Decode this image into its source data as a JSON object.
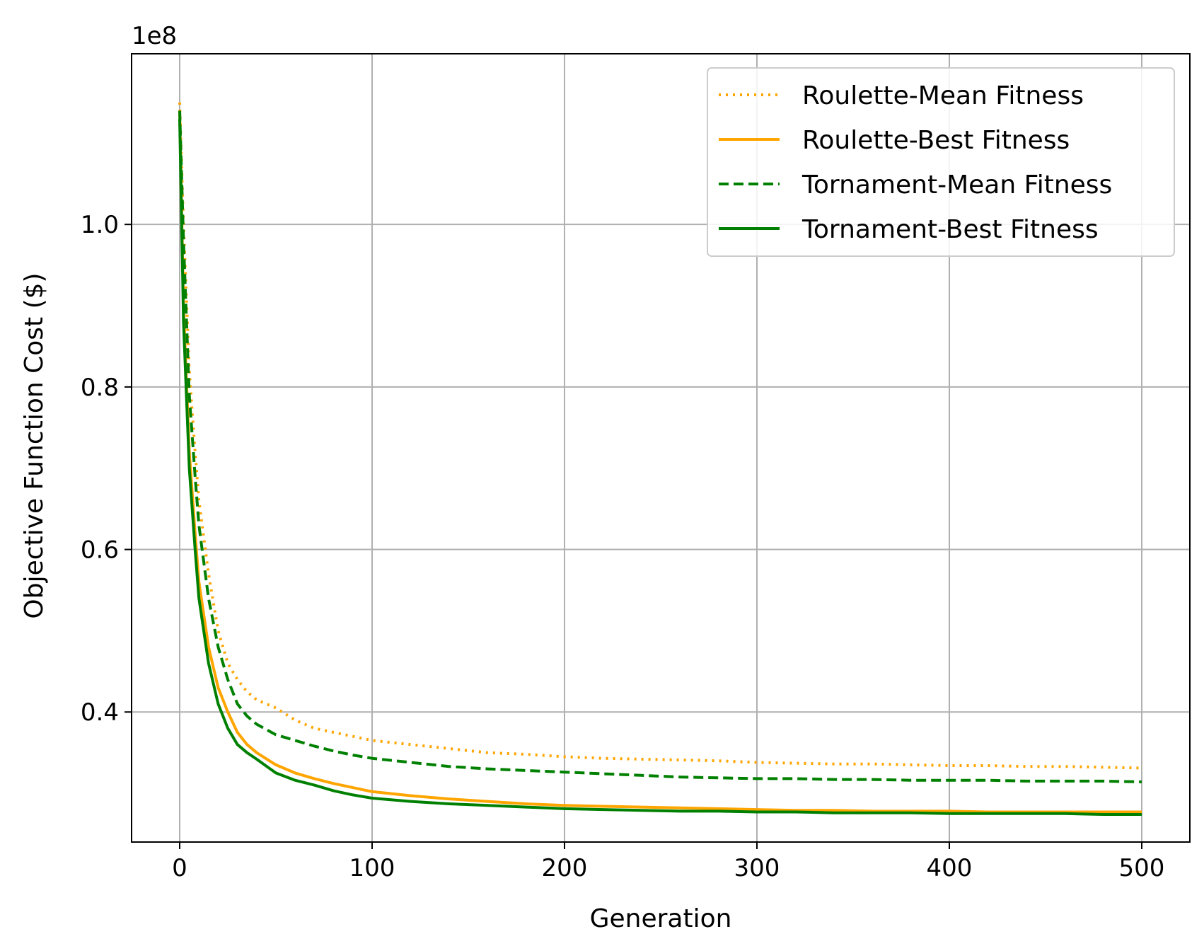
{
  "chart_data": {
    "type": "line",
    "xlabel": "Generation",
    "ylabel": "Objective Function Cost ($)",
    "y_offset_label": "1e8",
    "xlim": [
      -25,
      525
    ],
    "ylim": [
      0.24,
      1.21
    ],
    "xticks": [
      0,
      100,
      200,
      300,
      400,
      500
    ],
    "xtick_labels": [
      "0",
      "100",
      "200",
      "300",
      "400",
      "500"
    ],
    "yticks": [
      0.4,
      0.6,
      0.8,
      1.0
    ],
    "ytick_labels": [
      "0.4",
      "0.6",
      "0.8",
      "1.0"
    ],
    "grid": true,
    "legend_position": "top-right",
    "series": [
      {
        "name": "Roulette-Mean Fitness",
        "color": "#ffa500",
        "style": "dotted",
        "x": [
          0,
          2,
          5,
          8,
          10,
          15,
          20,
          25,
          30,
          35,
          40,
          50,
          60,
          70,
          80,
          90,
          100,
          120,
          140,
          160,
          180,
          200,
          220,
          240,
          260,
          280,
          300,
          320,
          340,
          360,
          380,
          400,
          420,
          440,
          460,
          480,
          500
        ],
        "y": [
          1.15,
          1.0,
          0.82,
          0.72,
          0.66,
          0.57,
          0.5,
          0.46,
          0.44,
          0.425,
          0.415,
          0.405,
          0.39,
          0.38,
          0.375,
          0.37,
          0.365,
          0.36,
          0.355,
          0.35,
          0.348,
          0.345,
          0.343,
          0.342,
          0.341,
          0.34,
          0.338,
          0.337,
          0.336,
          0.336,
          0.335,
          0.334,
          0.334,
          0.333,
          0.333,
          0.332,
          0.331
        ]
      },
      {
        "name": "Roulette-Best Fitness",
        "color": "#ffa500",
        "style": "solid",
        "x": [
          0,
          2,
          5,
          8,
          10,
          15,
          20,
          25,
          30,
          35,
          40,
          50,
          60,
          70,
          80,
          90,
          100,
          120,
          140,
          160,
          180,
          200,
          220,
          240,
          260,
          280,
          300,
          320,
          340,
          360,
          380,
          400,
          420,
          440,
          460,
          480,
          500
        ],
        "y": [
          1.14,
          0.9,
          0.72,
          0.62,
          0.56,
          0.48,
          0.43,
          0.4,
          0.375,
          0.36,
          0.35,
          0.335,
          0.325,
          0.318,
          0.312,
          0.307,
          0.302,
          0.297,
          0.293,
          0.29,
          0.287,
          0.285,
          0.284,
          0.283,
          0.282,
          0.281,
          0.28,
          0.279,
          0.279,
          0.278,
          0.278,
          0.278,
          0.277,
          0.277,
          0.277,
          0.277,
          0.277
        ]
      },
      {
        "name": "Tornament-Mean Fitness",
        "color": "#008000",
        "style": "dashed",
        "x": [
          0,
          2,
          5,
          8,
          10,
          15,
          20,
          25,
          30,
          35,
          40,
          50,
          60,
          70,
          80,
          90,
          100,
          120,
          140,
          160,
          180,
          200,
          220,
          240,
          260,
          280,
          300,
          320,
          340,
          360,
          380,
          400,
          420,
          440,
          460,
          480,
          500
        ],
        "y": [
          1.14,
          0.98,
          0.79,
          0.69,
          0.63,
          0.54,
          0.48,
          0.44,
          0.41,
          0.395,
          0.385,
          0.372,
          0.365,
          0.358,
          0.352,
          0.347,
          0.343,
          0.338,
          0.333,
          0.33,
          0.328,
          0.326,
          0.324,
          0.322,
          0.32,
          0.319,
          0.318,
          0.318,
          0.317,
          0.317,
          0.316,
          0.316,
          0.316,
          0.315,
          0.315,
          0.315,
          0.314
        ]
      },
      {
        "name": "Tornament-Best Fitness",
        "color": "#008000",
        "style": "solid",
        "x": [
          0,
          2,
          5,
          8,
          10,
          15,
          20,
          25,
          30,
          35,
          40,
          50,
          60,
          70,
          80,
          90,
          100,
          120,
          140,
          160,
          180,
          200,
          220,
          240,
          260,
          280,
          300,
          320,
          340,
          360,
          380,
          400,
          420,
          440,
          460,
          480,
          500
        ],
        "y": [
          1.13,
          0.88,
          0.7,
          0.6,
          0.54,
          0.46,
          0.41,
          0.38,
          0.36,
          0.35,
          0.342,
          0.325,
          0.316,
          0.31,
          0.303,
          0.298,
          0.294,
          0.29,
          0.287,
          0.285,
          0.283,
          0.281,
          0.28,
          0.279,
          0.278,
          0.278,
          0.277,
          0.277,
          0.276,
          0.276,
          0.276,
          0.275,
          0.275,
          0.275,
          0.275,
          0.274,
          0.274
        ]
      }
    ]
  }
}
